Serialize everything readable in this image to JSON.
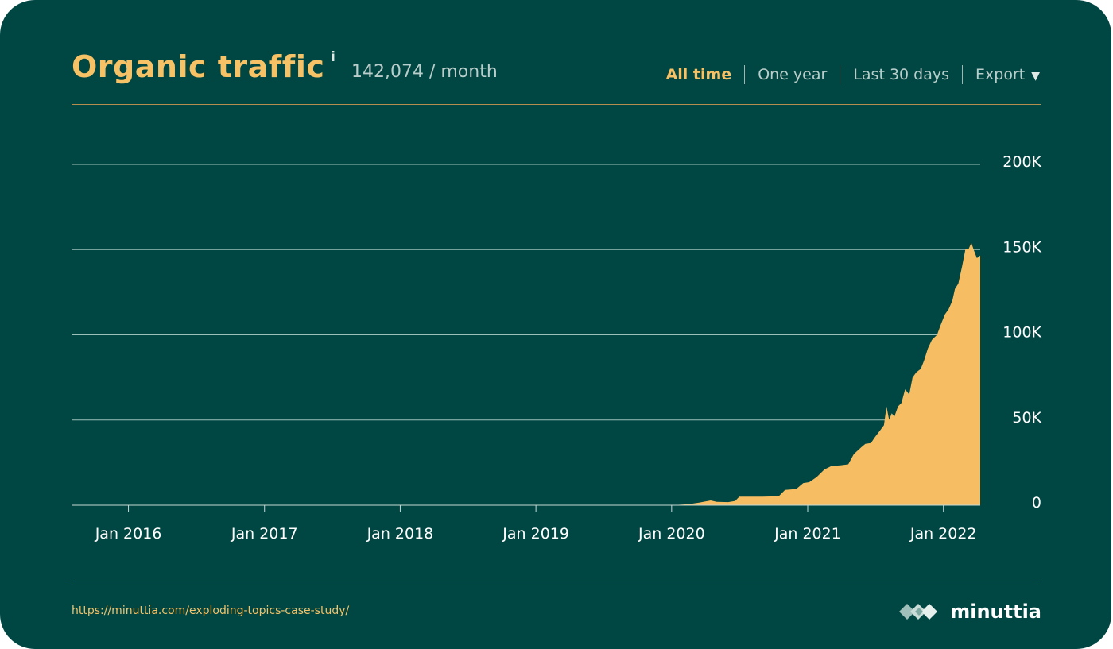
{
  "header": {
    "title": "Organic traffic",
    "info_icon": "i",
    "metric": "142,074 / month",
    "tabs": [
      {
        "label": "All time",
        "active": true
      },
      {
        "label": "One year",
        "active": false
      },
      {
        "label": "Last 30 days",
        "active": false
      }
    ],
    "export_label": "Export",
    "export_icon": "chevron-down-icon"
  },
  "footer": {
    "source_url": "https://minuttia.com/exploding-topics-case-study/",
    "logo_text": "minuttia",
    "logo_icon": "diamond-cluster-icon"
  },
  "colors": {
    "background": "#004643",
    "accent": "#f7c266",
    "area_fill": "#f7bd63",
    "gridline": "#9cc0ba",
    "muted_text": "#b9cdca"
  },
  "chart_data": {
    "type": "area",
    "title": "Organic traffic",
    "xlabel": "",
    "ylabel": "",
    "xlim": [
      "2015-08-01",
      "2022-04-10"
    ],
    "ylim": [
      0,
      200000
    ],
    "grid": true,
    "y_axis_position": "right",
    "x_ticks": [
      "Jan 2016",
      "Jan 2017",
      "Jan 2018",
      "Jan 2019",
      "Jan 2020",
      "Jan 2021",
      "Jan 2022"
    ],
    "y_ticks": [
      {
        "value": 0,
        "label": "0"
      },
      {
        "value": 50000,
        "label": "50K"
      },
      {
        "value": 100000,
        "label": "100K"
      },
      {
        "value": 150000,
        "label": "150K"
      },
      {
        "value": 200000,
        "label": "200K"
      }
    ],
    "series": [
      {
        "values": [
          [
            "2015-08-01",
            0
          ],
          [
            "2019-12-01",
            0
          ],
          [
            "2020-01-15",
            200
          ],
          [
            "2020-02-15",
            600
          ],
          [
            "2020-03-15",
            1500
          ],
          [
            "2020-04-15",
            2800
          ],
          [
            "2020-05-01",
            2000
          ],
          [
            "2020-06-01",
            1800
          ],
          [
            "2020-06-20",
            2500
          ],
          [
            "2020-07-01",
            5000
          ],
          [
            "2020-08-01",
            5000
          ],
          [
            "2020-09-01",
            5000
          ],
          [
            "2020-10-15",
            5200
          ],
          [
            "2020-11-01",
            9000
          ],
          [
            "2020-12-01",
            9500
          ],
          [
            "2020-12-20",
            13000
          ],
          [
            "2021-01-05",
            13500
          ],
          [
            "2021-01-25",
            16500
          ],
          [
            "2021-02-15",
            21000
          ],
          [
            "2021-03-05",
            23000
          ],
          [
            "2021-04-01",
            23500
          ],
          [
            "2021-04-20",
            24000
          ],
          [
            "2021-05-05",
            30000
          ],
          [
            "2021-05-25",
            34000
          ],
          [
            "2021-06-05",
            36000
          ],
          [
            "2021-06-20",
            36500
          ],
          [
            "2021-07-01",
            40000
          ],
          [
            "2021-07-15",
            44000
          ],
          [
            "2021-07-25",
            47000
          ],
          [
            "2021-08-01",
            58000
          ],
          [
            "2021-08-08",
            50000
          ],
          [
            "2021-08-15",
            54000
          ],
          [
            "2021-08-22",
            52000
          ],
          [
            "2021-09-01",
            58000
          ],
          [
            "2021-09-10",
            60000
          ],
          [
            "2021-09-20",
            68000
          ],
          [
            "2021-10-01",
            65000
          ],
          [
            "2021-10-10",
            75000
          ],
          [
            "2021-10-20",
            78000
          ],
          [
            "2021-11-01",
            80000
          ],
          [
            "2021-11-10",
            85000
          ],
          [
            "2021-11-20",
            92000
          ],
          [
            "2021-12-01",
            97000
          ],
          [
            "2021-12-15",
            100000
          ],
          [
            "2021-12-25",
            106000
          ],
          [
            "2022-01-05",
            112000
          ],
          [
            "2022-01-15",
            115000
          ],
          [
            "2022-01-25",
            120000
          ],
          [
            "2022-02-01",
            127000
          ],
          [
            "2022-02-10",
            130000
          ],
          [
            "2022-02-20",
            140000
          ],
          [
            "2022-03-01",
            150000
          ],
          [
            "2022-03-10",
            150500
          ],
          [
            "2022-03-17",
            154000
          ],
          [
            "2022-03-25",
            149000
          ],
          [
            "2022-04-01",
            145000
          ],
          [
            "2022-04-10",
            146500
          ]
        ]
      }
    ]
  }
}
